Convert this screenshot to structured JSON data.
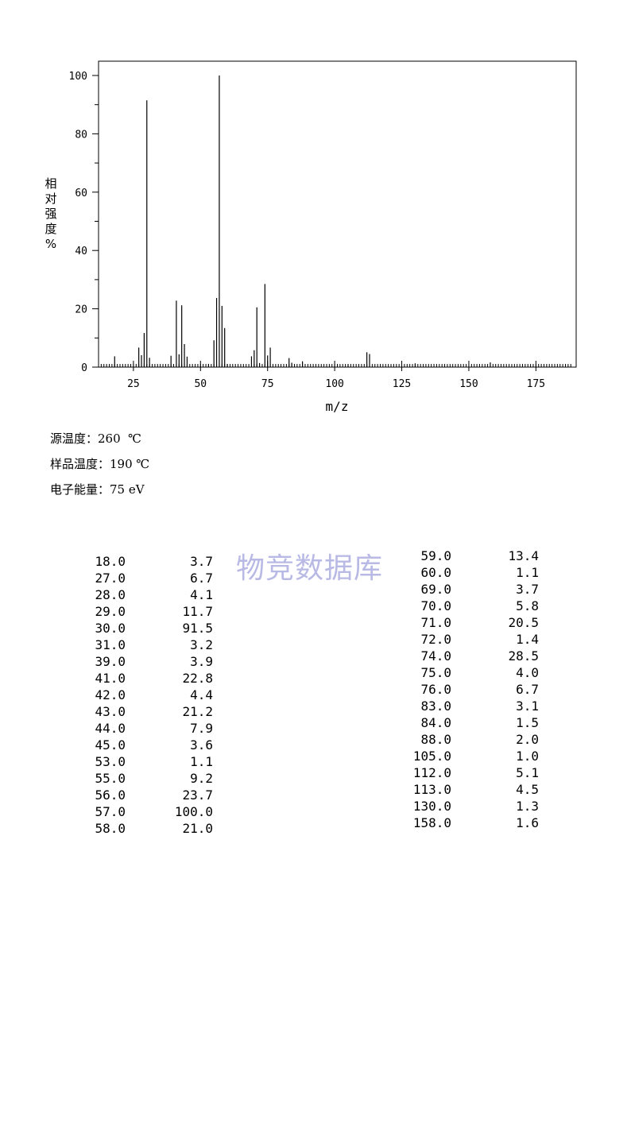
{
  "chart_data": {
    "type": "bar",
    "title": "",
    "xlabel": "m/z",
    "ylabel": "相对强度%",
    "xlim": [
      12,
      190
    ],
    "ylim": [
      0,
      105
    ],
    "xticks": [
      25,
      50,
      75,
      100,
      125,
      150,
      175
    ],
    "yticks": [
      0,
      20,
      40,
      60,
      80,
      100
    ],
    "grid": false,
    "peaks": [
      {
        "mz": 18.0,
        "intensity": 3.7
      },
      {
        "mz": 27.0,
        "intensity": 6.7
      },
      {
        "mz": 28.0,
        "intensity": 4.1
      },
      {
        "mz": 29.0,
        "intensity": 11.7
      },
      {
        "mz": 30.0,
        "intensity": 91.5
      },
      {
        "mz": 31.0,
        "intensity": 3.2
      },
      {
        "mz": 39.0,
        "intensity": 3.9
      },
      {
        "mz": 41.0,
        "intensity": 22.8
      },
      {
        "mz": 42.0,
        "intensity": 4.4
      },
      {
        "mz": 43.0,
        "intensity": 21.2
      },
      {
        "mz": 44.0,
        "intensity": 7.9
      },
      {
        "mz": 45.0,
        "intensity": 3.6
      },
      {
        "mz": 53.0,
        "intensity": 1.1
      },
      {
        "mz": 55.0,
        "intensity": 9.2
      },
      {
        "mz": 56.0,
        "intensity": 23.7
      },
      {
        "mz": 57.0,
        "intensity": 100.0
      },
      {
        "mz": 58.0,
        "intensity": 21.0
      },
      {
        "mz": 59.0,
        "intensity": 13.4
      },
      {
        "mz": 60.0,
        "intensity": 1.1
      },
      {
        "mz": 69.0,
        "intensity": 3.7
      },
      {
        "mz": 70.0,
        "intensity": 5.8
      },
      {
        "mz": 71.0,
        "intensity": 20.5
      },
      {
        "mz": 72.0,
        "intensity": 1.4
      },
      {
        "mz": 74.0,
        "intensity": 28.5
      },
      {
        "mz": 75.0,
        "intensity": 4.0
      },
      {
        "mz": 76.0,
        "intensity": 6.7
      },
      {
        "mz": 83.0,
        "intensity": 3.1
      },
      {
        "mz": 84.0,
        "intensity": 1.5
      },
      {
        "mz": 88.0,
        "intensity": 2.0
      },
      {
        "mz": 105.0,
        "intensity": 1.0
      },
      {
        "mz": 112.0,
        "intensity": 5.1
      },
      {
        "mz": 113.0,
        "intensity": 4.5
      },
      {
        "mz": 130.0,
        "intensity": 1.3
      },
      {
        "mz": 158.0,
        "intensity": 1.6
      }
    ]
  },
  "conditions": {
    "source_temp": "源温度：260  ℃",
    "sample_temp": "样品温度：190 ℃",
    "electron_energy": "电子能量：75 eV"
  },
  "watermark": "物竞数据库",
  "table": {
    "left": [
      [
        "18.0",
        "3.7"
      ],
      [
        "27.0",
        "6.7"
      ],
      [
        "28.0",
        "4.1"
      ],
      [
        "29.0",
        "11.7"
      ],
      [
        "30.0",
        "91.5"
      ],
      [
        "31.0",
        "3.2"
      ],
      [
        "39.0",
        "3.9"
      ],
      [
        "41.0",
        "22.8"
      ],
      [
        "42.0",
        "4.4"
      ],
      [
        "43.0",
        "21.2"
      ],
      [
        "44.0",
        "7.9"
      ],
      [
        "45.0",
        "3.6"
      ],
      [
        "53.0",
        "1.1"
      ],
      [
        "55.0",
        "9.2"
      ],
      [
        "56.0",
        "23.7"
      ],
      [
        "57.0",
        "100.0"
      ],
      [
        "58.0",
        "21.0"
      ]
    ],
    "right": [
      [
        "59.0",
        "13.4"
      ],
      [
        "60.0",
        "1.1"
      ],
      [
        "69.0",
        "3.7"
      ],
      [
        "70.0",
        "5.8"
      ],
      [
        "71.0",
        "20.5"
      ],
      [
        "72.0",
        "1.4"
      ],
      [
        "74.0",
        "28.5"
      ],
      [
        "75.0",
        "4.0"
      ],
      [
        "76.0",
        "6.7"
      ],
      [
        "83.0",
        "3.1"
      ],
      [
        "84.0",
        "1.5"
      ],
      [
        "88.0",
        "2.0"
      ],
      [
        "105.0",
        "1.0"
      ],
      [
        "112.0",
        "5.1"
      ],
      [
        "113.0",
        "4.5"
      ],
      [
        "130.0",
        "1.3"
      ],
      [
        "158.0",
        "1.6"
      ]
    ]
  }
}
